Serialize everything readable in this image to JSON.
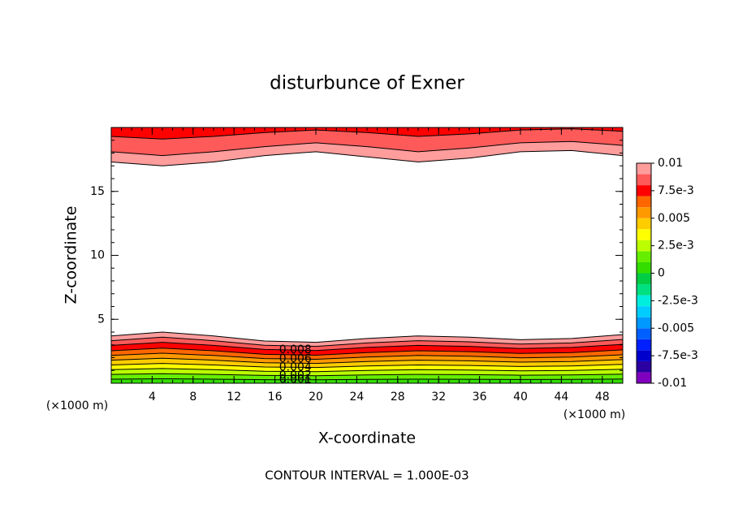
{
  "chart_data": {
    "type": "contour",
    "title": "disturbunce of Exner",
    "x_label": "X-coordinate",
    "y_label": "Z-coordinate",
    "x_unit": "(×1000 m)",
    "note": "CONTOUR INTERVAL = 1.000E-03",
    "xlim": [
      0,
      50
    ],
    "ylim": [
      0,
      20
    ],
    "xticks": [
      4,
      8,
      12,
      16,
      20,
      24,
      28,
      32,
      36,
      40,
      44,
      48
    ],
    "yticks": [
      5,
      10,
      15
    ],
    "x_minor_step": 1,
    "y_minor_step": 1,
    "x": [
      0,
      5,
      10,
      15,
      20,
      25,
      30,
      35,
      40,
      45,
      50
    ],
    "lower_contours": [
      {
        "level": 0.001,
        "labeled": true,
        "z": [
          0.32,
          0.35,
          0.32,
          0.28,
          0.27,
          0.3,
          0.32,
          0.31,
          0.29,
          0.3,
          0.33
        ]
      },
      {
        "level": 0.002,
        "labeled": true,
        "z": [
          0.69,
          0.75,
          0.69,
          0.61,
          0.59,
          0.65,
          0.69,
          0.67,
          0.63,
          0.65,
          0.71
        ]
      },
      {
        "level": 0.003,
        "labeled": false,
        "z": [
          1.06,
          1.15,
          1.06,
          0.94,
          0.91,
          1,
          1.06,
          1.03,
          0.97,
          1,
          1.09
        ]
      },
      {
        "level": 0.004,
        "labeled": true,
        "z": [
          1.43,
          1.55,
          1.43,
          1.27,
          1.23,
          1.35,
          1.43,
          1.39,
          1.31,
          1.35,
          1.47
        ]
      },
      {
        "level": 0.005,
        "labeled": false,
        "z": [
          1.8,
          1.95,
          1.8,
          1.6,
          1.55,
          1.7,
          1.8,
          1.75,
          1.65,
          1.7,
          1.85
        ]
      },
      {
        "level": 0.006,
        "labeled": true,
        "z": [
          2.17,
          2.35,
          2.17,
          1.93,
          1.87,
          2.05,
          2.17,
          2.11,
          1.99,
          2.05,
          2.23
        ]
      },
      {
        "level": 0.007,
        "labeled": false,
        "z": [
          2.54,
          2.75,
          2.54,
          2.26,
          2.19,
          2.4,
          2.54,
          2.47,
          2.33,
          2.4,
          2.61
        ]
      },
      {
        "level": 0.008,
        "labeled": true,
        "z": [
          2.96,
          3.2,
          2.96,
          2.64,
          2.56,
          2.8,
          2.96,
          2.88,
          2.72,
          2.8,
          3.04
        ]
      },
      {
        "level": 0.009,
        "labeled": false,
        "z": [
          3.33,
          3.6,
          3.33,
          2.97,
          2.88,
          3.15,
          3.33,
          3.24,
          3.06,
          3.15,
          3.42
        ]
      },
      {
        "level": 0.01,
        "labeled": false,
        "z": [
          3.7,
          4,
          3.7,
          3.3,
          3.2,
          3.5,
          3.7,
          3.6,
          3.4,
          3.5,
          3.8
        ]
      }
    ],
    "upper_contours": [
      {
        "level": 0.01,
        "labeled": false,
        "z": [
          17.3,
          17.0,
          17.3,
          17.8,
          18.1,
          17.7,
          17.3,
          17.6,
          18.1,
          18.2,
          17.8
        ]
      },
      {
        "level": 0.009,
        "labeled": false,
        "z": [
          18.1,
          17.8,
          18.1,
          18.5,
          18.8,
          18.5,
          18.1,
          18.4,
          18.8,
          18.9,
          18.6
        ]
      },
      {
        "level": 0.008,
        "labeled": false,
        "z": [
          19.3,
          19.1,
          19.3,
          19.6,
          19.8,
          19.6,
          19.3,
          19.5,
          19.8,
          19.9,
          19.7
        ]
      }
    ],
    "label_x": 18,
    "colorbar": {
      "levels": [
        -0.01,
        -0.009,
        -0.008,
        -0.007,
        -0.006,
        -0.005,
        -0.004,
        -0.003,
        -0.002,
        -0.001,
        0,
        0.001,
        0.002,
        0.003,
        0.004,
        0.005,
        0.006,
        0.007,
        0.008,
        0.009,
        0.01
      ],
      "colors": [
        "#7f00bf",
        "#2a00a0",
        "#0000cc",
        "#0020ff",
        "#0060ff",
        "#0099ff",
        "#00ccff",
        "#00eedd",
        "#00e080",
        "#00cc44",
        "#33dd00",
        "#66ee00",
        "#bbff00",
        "#ffff00",
        "#ffcc00",
        "#ff9900",
        "#ff6600",
        "#ff0000",
        "#ff5a5a",
        "#ff9c9c"
      ],
      "ticks": [
        {
          "value": 0.01,
          "label": "0.01"
        },
        {
          "value": 0.0075,
          "label": "7.5e-3"
        },
        {
          "value": 0.005,
          "label": "0.005"
        },
        {
          "value": 0.0025,
          "label": "2.5e-3"
        },
        0,
        {
          "value": -0.0025,
          "label": "-2.5e-3"
        },
        {
          "value": -0.005,
          "label": "-0.005"
        },
        {
          "value": -0.0075,
          "label": "-7.5e-3"
        },
        {
          "value": -0.01,
          "label": "-0.01"
        }
      ]
    }
  }
}
